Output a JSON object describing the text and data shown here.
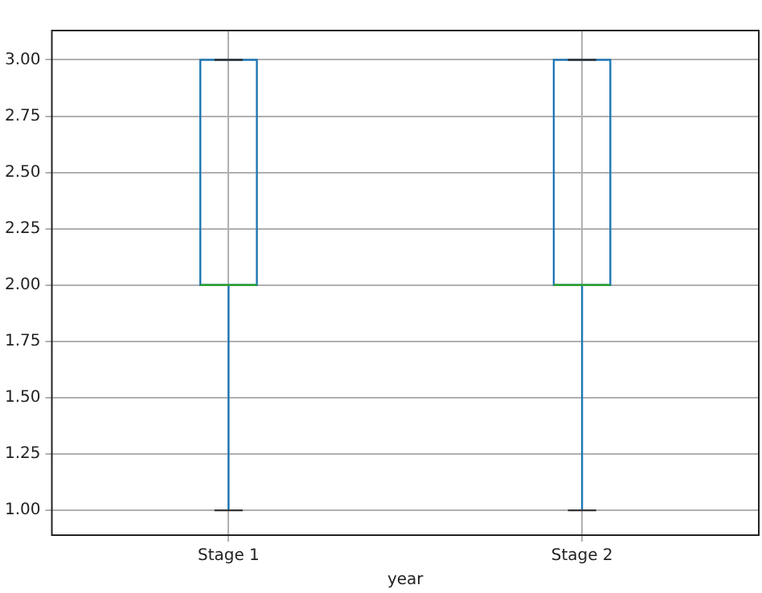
{
  "chart_data": {
    "type": "box",
    "xlabel": "year",
    "categories": [
      "Stage 1",
      "Stage 2"
    ],
    "boxes": [
      {
        "low": 1,
        "q1": 2,
        "median": 2,
        "q3": 3,
        "high": 3
      },
      {
        "low": 1,
        "q1": 2,
        "median": 2,
        "q3": 3,
        "high": 3
      }
    ],
    "color": "#1f77b4",
    "ylim": [
      0.89,
      3.13
    ],
    "yticks": [
      {
        "value": 1,
        "label": "1.00"
      },
      {
        "value": 1.25,
        "label": "1.25"
      },
      {
        "value": 1.5,
        "label": "1.50"
      },
      {
        "value": 1.75,
        "label": "1.75"
      },
      {
        "value": 2,
        "label": "2.00"
      },
      {
        "value": 2.25,
        "label": "2.25"
      },
      {
        "value": 2.5,
        "label": "2.50"
      },
      {
        "value": 2.75,
        "label": "2.75"
      },
      {
        "value": 3,
        "label": "3.00"
      }
    ],
    "grid": true,
    "legend": false
  }
}
